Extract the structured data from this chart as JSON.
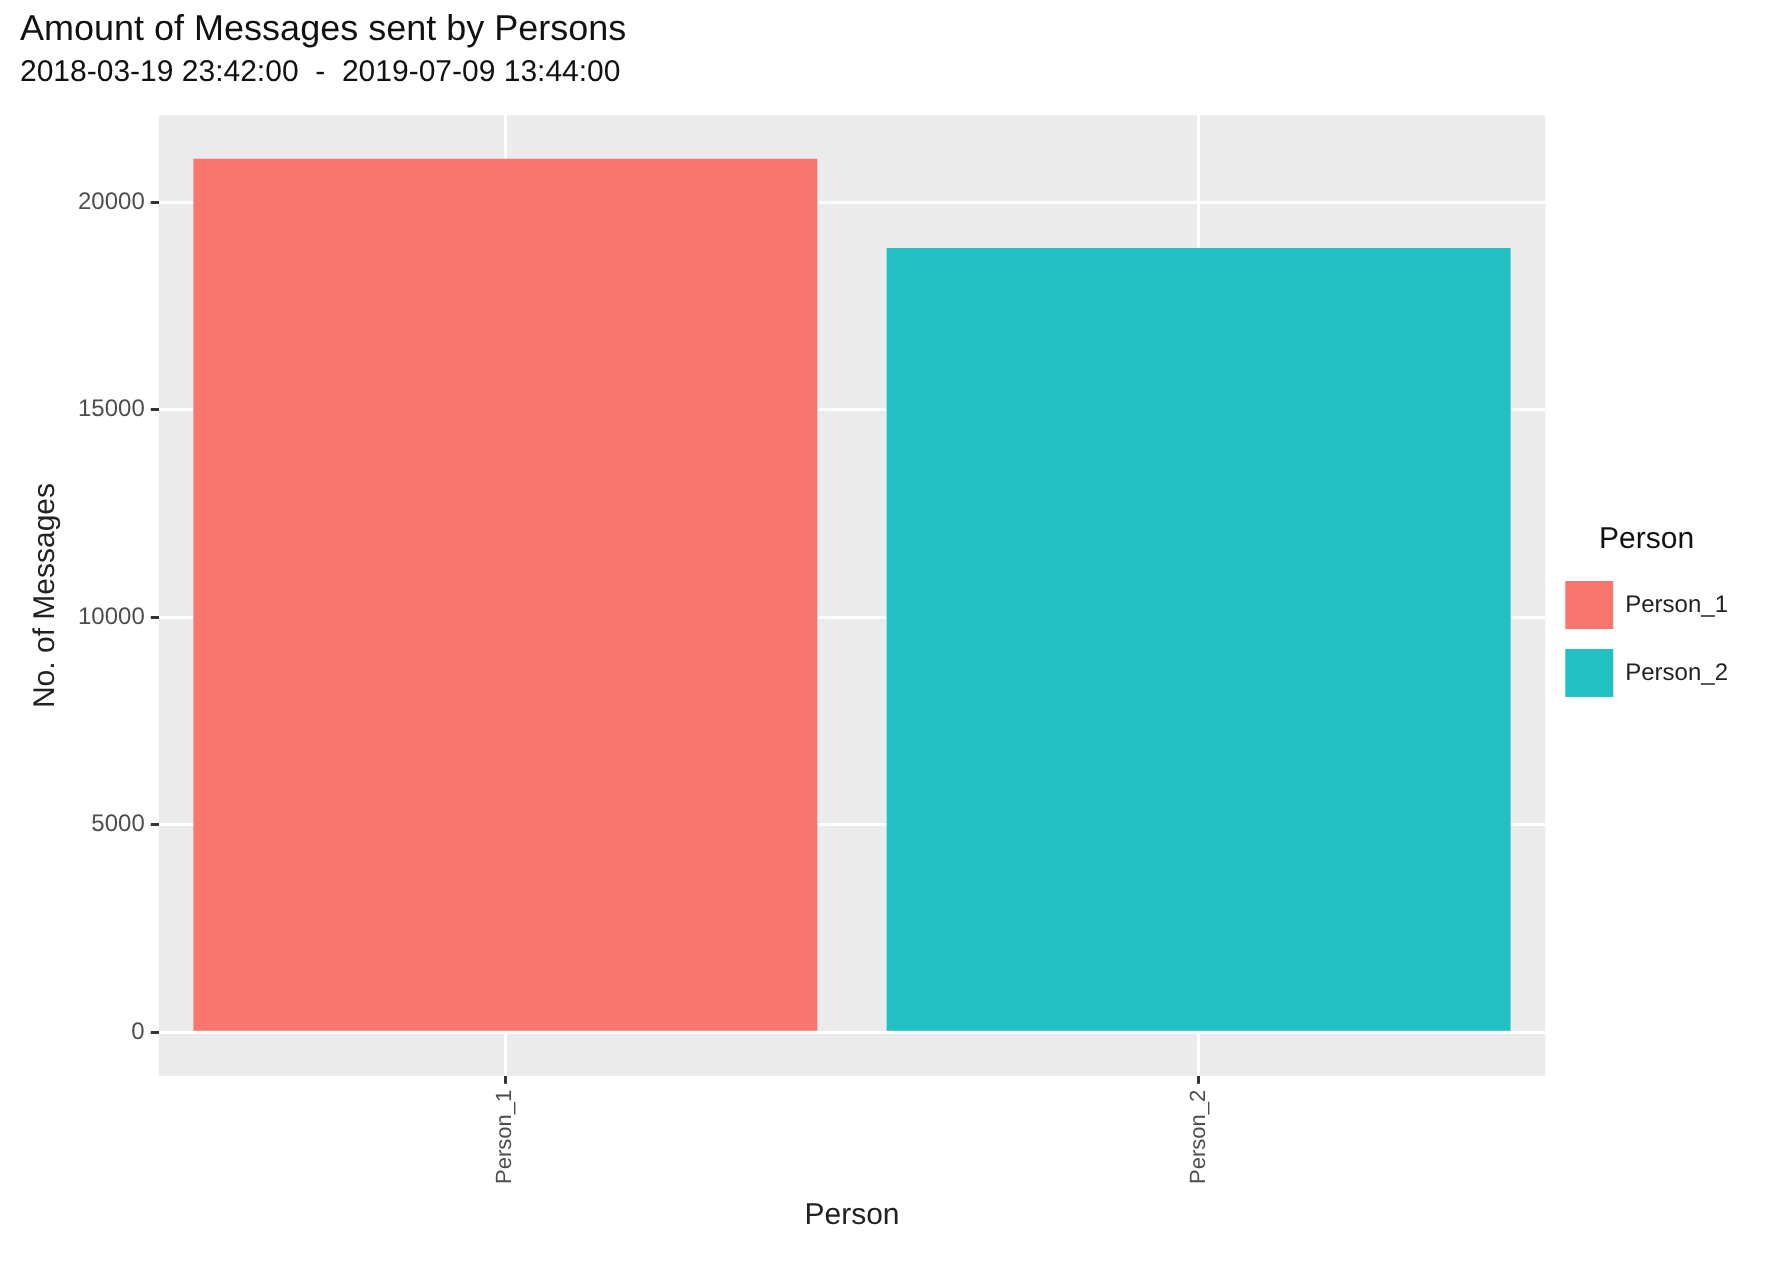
{
  "chart_data": {
    "type": "bar",
    "title": "Amount of Messages sent by Persons",
    "subtitle": "2018-03-19 23:42:00  -  2019-07-09 13:44:00",
    "xlabel": "Person",
    "ylabel": "No. of Messages",
    "legend_title": "Person",
    "categories": [
      "Person_1",
      "Person_2"
    ],
    "series": [
      {
        "name": "Person_1",
        "color": "#f8766d",
        "values": [
          21050,
          null
        ]
      },
      {
        "name": "Person_2",
        "color": "#22bfc3",
        "values": [
          null,
          18900
        ]
      }
    ],
    "ylim": [
      -1050,
      22100
    ],
    "yticks": [
      0,
      5000,
      10000,
      15000,
      20000
    ],
    "grid": true,
    "legend": "right"
  }
}
